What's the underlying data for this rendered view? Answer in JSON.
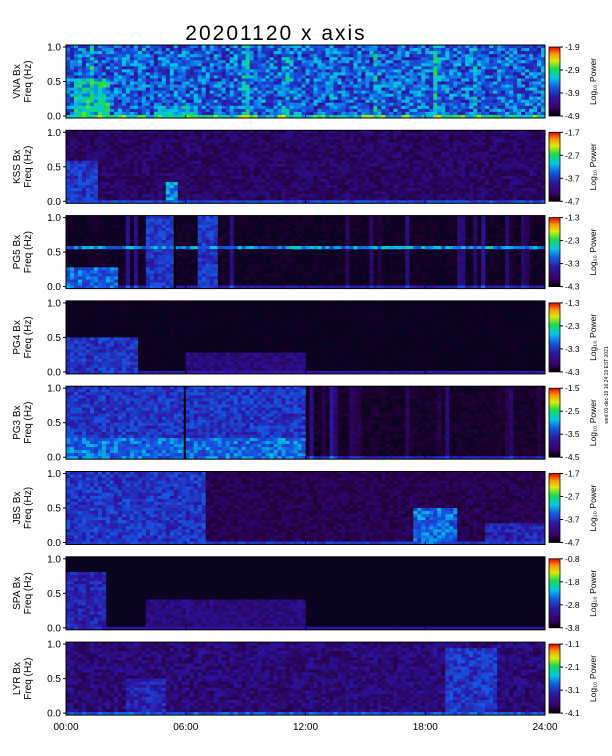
{
  "figure": {
    "title": "20201120  x axis",
    "side_note": "wed 01-dec-19 16:24:19 EST 2021"
  },
  "chart_data": {
    "type": "heatmap",
    "title": "20201120  x axis",
    "x_axis": {
      "range": [
        "00:00",
        "24:00"
      ],
      "tick_labels": [
        "00:00",
        "06:00",
        "12:00",
        "18:00",
        "24:00"
      ]
    },
    "panels": [
      {
        "station": "VNA Bx",
        "ylabel": "Freq (Hz)",
        "ylim": [
          0,
          1.0
        ],
        "y_ticks": [
          "0.0",
          "0.5",
          "1.0"
        ],
        "colorbar_label": "Log₁₀ Power",
        "colorbar_ticks": [
          "-1.9",
          "-2.9",
          "-3.9",
          "-4.9"
        ],
        "color_range": [
          -4.9,
          -1.9
        ],
        "data_gaps": [],
        "features": [
          {
            "start": 0.4,
            "end": 2.2,
            "fmin": 0.0,
            "fmax": 0.55,
            "level": 0.6
          },
          {
            "start": 4.5,
            "end": 6.5,
            "fmin": 0.0,
            "fmax": 0.15,
            "level": 0.55
          }
        ],
        "base_level": 0.4,
        "vertical_lines": true
      },
      {
        "station": "KSS Bx",
        "ylabel": "Freq (Hz)",
        "ylim": [
          0,
          1.0
        ],
        "y_ticks": [
          "0.0",
          "0.5",
          "1.0"
        ],
        "colorbar_label": "Log₁₀ Power",
        "colorbar_ticks": [
          "-1.7",
          "-2.7",
          "-3.7",
          "-4.7"
        ],
        "color_range": [
          -4.7,
          -1.7
        ],
        "data_gaps": [],
        "features": [
          {
            "start": 0.0,
            "end": 1.5,
            "fmin": 0.0,
            "fmax": 0.6,
            "level": 0.35
          },
          {
            "start": 5.0,
            "end": 5.5,
            "fmin": 0.0,
            "fmax": 0.3,
            "level": 0.5
          }
        ],
        "base_level": 0.15,
        "vertical_lines": false
      },
      {
        "station": "PG5 Bx",
        "ylabel": "Freq (Hz)",
        "ylim": [
          0,
          1.0
        ],
        "y_ticks": [
          "0.0",
          "0.5",
          "1.0"
        ],
        "colorbar_label": "Log₁₀ Power",
        "colorbar_ticks": [
          "-1.3",
          "-2.3",
          "-3.3",
          "-4.3"
        ],
        "color_range": [
          -4.3,
          -1.3
        ],
        "data_gaps": [
          [
            5.4,
            5.5
          ]
        ],
        "features": [
          {
            "start": 0.0,
            "end": 2.5,
            "fmin": 0.0,
            "fmax": 0.3,
            "level": 0.45
          },
          {
            "start": 4.0,
            "end": 5.4,
            "fmin": 0.0,
            "fmax": 1.0,
            "level": 0.35
          },
          {
            "start": 6.7,
            "end": 7.7,
            "fmin": 0.0,
            "fmax": 1.0,
            "level": 0.35
          },
          {
            "start": 0.0,
            "end": 24.0,
            "fmin": 0.54,
            "fmax": 0.58,
            "level": 0.5
          }
        ],
        "base_level": 0.05,
        "vertical_lines": true
      },
      {
        "station": "PG4 Bx",
        "ylabel": "Freq (Hz)",
        "ylim": [
          0,
          1.0
        ],
        "y_ticks": [
          "0.0",
          "0.5",
          "1.0"
        ],
        "colorbar_label": "Log₁₀ Power",
        "colorbar_ticks": [
          "-1.3",
          "-2.3",
          "-3.3",
          "-4.3"
        ],
        "color_range": [
          -4.3,
          -1.3
        ],
        "data_gaps": [],
        "features": [
          {
            "start": 0.0,
            "end": 3.5,
            "fmin": 0.0,
            "fmax": 0.5,
            "level": 0.35
          },
          {
            "start": 6.0,
            "end": 12.0,
            "fmin": 0.0,
            "fmax": 0.3,
            "level": 0.2
          }
        ],
        "base_level": 0.04,
        "vertical_lines": false
      },
      {
        "station": "PG3 Bx",
        "ylabel": "Freq (Hz)",
        "ylim": [
          0,
          1.0
        ],
        "y_ticks": [
          "0.0",
          "0.5",
          "1.0"
        ],
        "colorbar_label": "Log₁₀ Power",
        "colorbar_ticks": [
          "-1.5",
          "-2.5",
          "-3.5",
          "-4.5"
        ],
        "color_range": [
          -4.5,
          -1.5
        ],
        "data_gaps": [
          [
            5.9,
            6.0
          ]
        ],
        "features": [
          {
            "start": 0.0,
            "end": 12.0,
            "fmin": 0.0,
            "fmax": 1.0,
            "level": 0.35
          },
          {
            "start": 0.0,
            "end": 12.0,
            "fmin": 0.0,
            "fmax": 0.3,
            "level": 0.45
          }
        ],
        "base_level": 0.06,
        "vertical_lines": true
      },
      {
        "station": "JBS Bx",
        "ylabel": "Freq (Hz)",
        "ylim": [
          0,
          1.0
        ],
        "y_ticks": [
          "0.0",
          "0.5",
          "1.0"
        ],
        "colorbar_label": "Log₁₀ Power",
        "colorbar_ticks": [
          "-1.7",
          "-2.7",
          "-3.7",
          "-4.7"
        ],
        "color_range": [
          -4.7,
          -1.7
        ],
        "data_gaps": [],
        "features": [
          {
            "start": 0.0,
            "end": 7.0,
            "fmin": 0.0,
            "fmax": 1.0,
            "level": 0.35
          },
          {
            "start": 17.5,
            "end": 19.5,
            "fmin": 0.0,
            "fmax": 0.5,
            "level": 0.45
          },
          {
            "start": 21.0,
            "end": 24.0,
            "fmin": 0.0,
            "fmax": 0.3,
            "level": 0.3
          }
        ],
        "base_level": 0.12,
        "vertical_lines": false
      },
      {
        "station": "SPA Bx",
        "ylabel": "Freq (Hz)",
        "ylim": [
          0,
          1.0
        ],
        "y_ticks": [
          "0.0",
          "0.5",
          "1.0"
        ],
        "colorbar_label": "Log₁₀ Power",
        "colorbar_ticks": [
          "-0.8",
          "-1.8",
          "-2.8",
          "-3.8"
        ],
        "color_range": [
          -3.8,
          -0.8
        ],
        "data_gaps": [],
        "features": [
          {
            "start": 0.0,
            "end": 2.0,
            "fmin": 0.0,
            "fmax": 0.8,
            "level": 0.3
          },
          {
            "start": 4.0,
            "end": 12.0,
            "fmin": 0.0,
            "fmax": 0.4,
            "level": 0.2
          }
        ],
        "base_level": 0.03,
        "vertical_lines": false
      },
      {
        "station": "LYR Bx",
        "ylabel": "Freq (Hz)",
        "ylim": [
          0,
          1.0
        ],
        "y_ticks": [
          "0.0",
          "0.5",
          "1.0"
        ],
        "colorbar_label": "Log₁₀ Power",
        "colorbar_ticks": [
          "-1.1",
          "-2.1",
          "-3.1",
          "-4.1"
        ],
        "color_range": [
          -4.1,
          -1.1
        ],
        "data_gaps": [],
        "features": [
          {
            "start": 19.0,
            "end": 21.5,
            "fmin": 0.0,
            "fmax": 0.9,
            "level": 0.35
          },
          {
            "start": 3.0,
            "end": 5.0,
            "fmin": 0.0,
            "fmax": 0.5,
            "level": 0.3
          }
        ],
        "base_level": 0.18,
        "vertical_lines": false
      }
    ]
  }
}
